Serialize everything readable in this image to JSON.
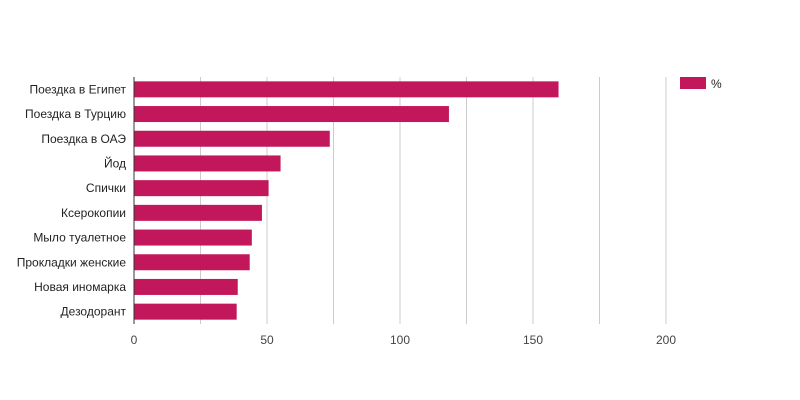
{
  "chart_data": {
    "type": "bar",
    "orientation": "horizontal",
    "categories": [
      "Поездка в Египет",
      "Поездка в Турцию",
      "Поездка в ОАЭ",
      "Йод",
      "Спички",
      "Ксерокопии",
      "Мыло туалетное",
      "Прокладки женские",
      "Новая иномарка",
      "Дезодорант"
    ],
    "series": [
      {
        "name": "%",
        "color": "#c2185b",
        "values": [
          159.6,
          118.4,
          73.6,
          55.1,
          50.6,
          48.1,
          44.3,
          43.5,
          39.0,
          38.6
        ]
      }
    ],
    "xlim": [
      0,
      200
    ],
    "x_ticks": [
      0,
      50,
      100,
      150,
      200
    ],
    "grid": true,
    "legend": {
      "position": "top-right",
      "label": "%"
    },
    "title": "",
    "xlabel": "",
    "ylabel": ""
  }
}
